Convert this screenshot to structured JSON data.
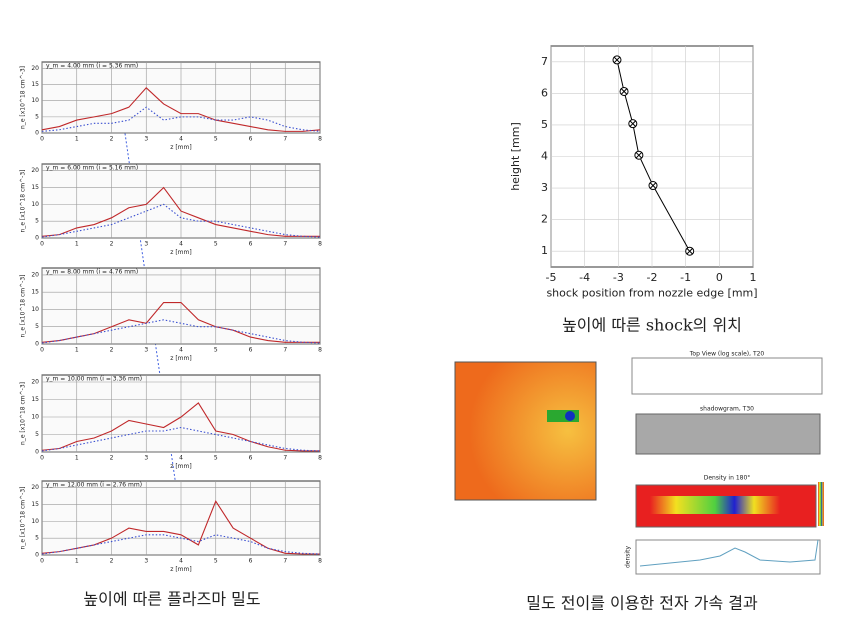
{
  "chart_data": [
    {
      "type": "line",
      "xlabel": "shock position from nozzle edge [mm]",
      "ylabel": "height [mm]",
      "x": [
        -0.88,
        -1.97,
        -2.39,
        -2.57,
        -2.83,
        -3.04
      ],
      "series": [
        {
          "color": "#000000",
          "marker": "circle-x",
          "values": [
            1,
            3.08,
            4.04,
            5.04,
            6.06,
            7.06
          ]
        }
      ],
      "xlim": [
        -5,
        1
      ],
      "xticks": [
        -5,
        -4,
        -3,
        -2,
        -1,
        0,
        1
      ],
      "ylim": [
        0.5,
        7.5
      ],
      "yticks": [
        1,
        2,
        3,
        4,
        5,
        6,
        7
      ],
      "grid": true
    },
    {
      "type": "line",
      "title": "y_m = 4.00 mm (i = 5.36 mm)",
      "xlabel": "z [mm]",
      "ylabel": "n_e [x10^18 cm^-3]",
      "x": [
        0,
        0.5,
        1,
        1.5,
        2,
        2.5,
        3,
        3.5,
        4,
        4.5,
        5,
        5.5,
        6,
        6.5,
        7,
        7.5,
        8
      ],
      "series": [
        {
          "color": "#c0282a",
          "values": [
            1,
            2,
            4,
            5,
            6,
            8,
            14,
            9,
            6,
            6,
            4,
            3,
            2,
            1,
            0.5,
            0.5,
            1
          ]
        },
        {
          "color": "#3a4fd0",
          "dash": true,
          "values": [
            0.5,
            1,
            2,
            3,
            3,
            4,
            8,
            4,
            5,
            5,
            4,
            4,
            5,
            4,
            2,
            1,
            0.5
          ]
        }
      ],
      "xlim": [
        0,
        8
      ],
      "xticks": [
        0,
        1,
        2,
        3,
        4,
        5,
        6,
        7,
        8
      ],
      "ylim": [
        0,
        22
      ],
      "yticks": [
        0,
        5,
        10,
        15,
        20
      ],
      "grid": true
    },
    {
      "type": "line",
      "title": "y_m = 6.00 mm (i = 5.16 mm)",
      "xlabel": "z [mm]",
      "ylabel": "n_e [x10^18 cm^-3]",
      "x": [
        0,
        0.5,
        1,
        1.5,
        2,
        2.5,
        3,
        3.5,
        4,
        4.5,
        5,
        5.5,
        6,
        6.5,
        7,
        7.5,
        8
      ],
      "series": [
        {
          "color": "#c0282a",
          "values": [
            0.5,
            1,
            3,
            4,
            6,
            9,
            10,
            15,
            8,
            6,
            4,
            3,
            2,
            1,
            0.5,
            0.5,
            0.5
          ]
        },
        {
          "color": "#3a4fd0",
          "dash": true,
          "values": [
            0.3,
            1,
            2,
            3,
            4,
            6,
            8,
            10,
            6,
            5,
            5,
            4,
            3,
            2,
            1,
            0.5,
            0.3
          ]
        }
      ],
      "xlim": [
        0,
        8
      ],
      "xticks": [
        0,
        1,
        2,
        3,
        4,
        5,
        6,
        7,
        8
      ],
      "ylim": [
        0,
        22
      ],
      "yticks": [
        0,
        5,
        10,
        15,
        20
      ],
      "grid": true
    },
    {
      "type": "line",
      "title": "y_m = 8.00 mm (i = 4.76 mm)",
      "xlabel": "z [mm]",
      "ylabel": "n_e [x10^18 cm^-3]",
      "x": [
        0,
        0.5,
        1,
        1.5,
        2,
        2.5,
        3,
        3.5,
        4,
        4.5,
        5,
        5.5,
        6,
        6.5,
        7,
        7.5,
        8
      ],
      "series": [
        {
          "color": "#c0282a",
          "values": [
            0.5,
            1,
            2,
            3,
            5,
            7,
            6,
            12,
            12,
            7,
            5,
            4,
            2,
            1,
            0.5,
            0.5,
            0.5
          ]
        },
        {
          "color": "#3a4fd0",
          "dash": true,
          "values": [
            0.3,
            1,
            2,
            3,
            4,
            5,
            6,
            7,
            6,
            5,
            5,
            4,
            3,
            2,
            1,
            0.5,
            0.3
          ]
        }
      ],
      "xlim": [
        0,
        8
      ],
      "xticks": [
        0,
        1,
        2,
        3,
        4,
        5,
        6,
        7,
        8
      ],
      "ylim": [
        0,
        22
      ],
      "yticks": [
        0,
        5,
        10,
        15,
        20
      ],
      "grid": true
    },
    {
      "type": "line",
      "title": "y_m = 10.00 mm (i = 3.36 mm)",
      "xlabel": "z [mm]",
      "ylabel": "n_e [x10^18 cm^-3]",
      "x": [
        0,
        0.5,
        1,
        1.5,
        2,
        2.5,
        3,
        3.5,
        4,
        4.5,
        5,
        5.5,
        6,
        6.5,
        7,
        7.5,
        8
      ],
      "series": [
        {
          "color": "#c0282a",
          "values": [
            0.5,
            1,
            3,
            4,
            6,
            9,
            8,
            7,
            10,
            14,
            6,
            5,
            3,
            1.5,
            0.5,
            0.3,
            0.3
          ]
        },
        {
          "color": "#3a4fd0",
          "dash": true,
          "values": [
            0.3,
            1,
            2,
            3,
            4,
            5,
            6,
            6,
            7,
            6,
            5,
            4,
            3,
            2,
            1,
            0.5,
            0.3
          ]
        }
      ],
      "xlim": [
        0,
        8
      ],
      "xticks": [
        0,
        1,
        2,
        3,
        4,
        5,
        6,
        7,
        8
      ],
      "ylim": [
        0,
        22
      ],
      "yticks": [
        0,
        5,
        10,
        15,
        20
      ],
      "grid": true
    },
    {
      "type": "line",
      "title": "y_m = 12.00 mm (i = 2.76 mm)",
      "xlabel": "z [mm]",
      "ylabel": "n_e [x10^18 cm^-3]",
      "x": [
        0,
        0.5,
        1,
        1.5,
        2,
        2.5,
        3,
        3.5,
        4,
        4.5,
        5,
        5.5,
        6,
        6.5,
        7,
        7.5,
        8
      ],
      "series": [
        {
          "color": "#c0282a",
          "values": [
            0.5,
            1,
            2,
            3,
            5,
            8,
            7,
            7,
            6,
            3,
            16,
            8,
            5,
            2,
            0.5,
            0.3,
            0.3
          ]
        },
        {
          "color": "#3a4fd0",
          "dash": true,
          "values": [
            0.3,
            1,
            2,
            3,
            4,
            5,
            6,
            6,
            5,
            4,
            6,
            5,
            4,
            2,
            1,
            0.5,
            0.3
          ]
        }
      ],
      "xlim": [
        0,
        8
      ],
      "xticks": [
        0,
        1,
        2,
        3,
        4,
        5,
        6,
        7,
        8
      ],
      "ylim": [
        0,
        22
      ],
      "yticks": [
        0,
        5,
        10,
        15,
        20
      ],
      "grid": true
    }
  ],
  "captions": {
    "shock": "높이에 따른 shock의 위치",
    "density": "높이에 따른 플라즈마 밀도",
    "acceleration": "밀도 전이를 이용한 전자 가속 결과"
  },
  "image_panel": {
    "top_view": "Top View (log scale), T20",
    "shadowgram": "shadowgram, T30",
    "density_map": "Density in 180°",
    "lineout": "density"
  }
}
